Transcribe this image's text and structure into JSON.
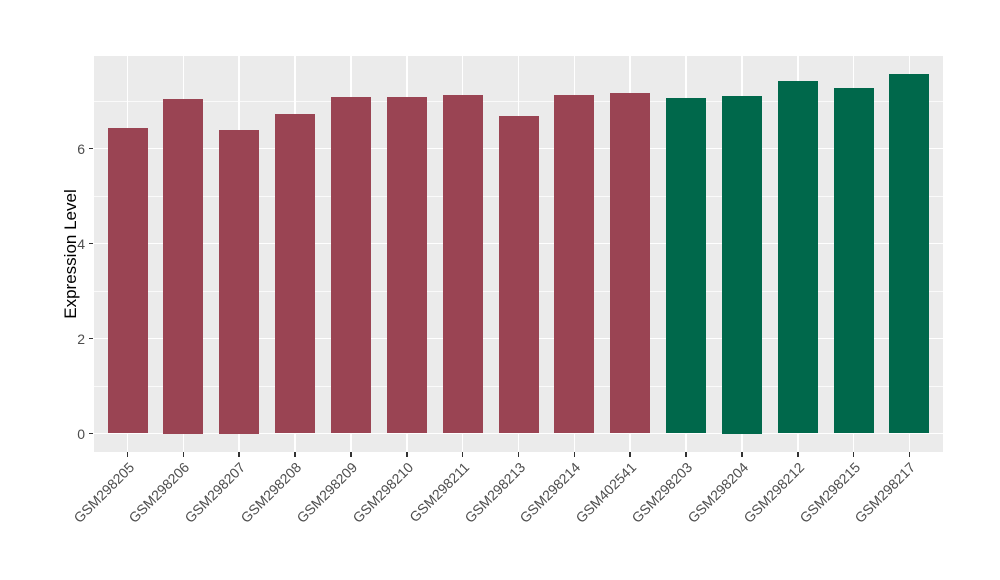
{
  "chart_data": {
    "type": "bar",
    "title": "",
    "xlabel": "",
    "ylabel": "Expression Level",
    "categories": [
      "GSM298205",
      "GSM298206",
      "GSM298207",
      "GSM298208",
      "GSM298209",
      "GSM298210",
      "GSM298211",
      "GSM298213",
      "GSM298214",
      "GSM402541",
      "GSM298203",
      "GSM298204",
      "GSM298212",
      "GSM298215",
      "GSM298217"
    ],
    "values": [
      6.44,
      7.05,
      6.4,
      6.73,
      7.08,
      7.08,
      7.12,
      6.68,
      7.13,
      7.17,
      7.07,
      7.1,
      7.43,
      7.27,
      7.56
    ],
    "bar_colors": [
      "#9A4453",
      "#9A4453",
      "#9A4453",
      "#9A4453",
      "#9A4453",
      "#9A4453",
      "#9A4453",
      "#9A4453",
      "#9A4453",
      "#9A4453",
      "#00684B",
      "#00684B",
      "#00684B",
      "#00684B",
      "#00684B"
    ],
    "y_axis": {
      "tick_labels": [
        "0",
        "2",
        "4",
        "6"
      ],
      "ticks": [
        0,
        2,
        4,
        6
      ],
      "minor_ticks": [
        1,
        3,
        5,
        7
      ],
      "range": [
        -0.39,
        7.95
      ]
    },
    "x_tick_rotation_deg": 45,
    "legend_position": "none",
    "grid": true,
    "style": {
      "panel_background": "#EBEBEB",
      "grid_color": "#FFFFFF",
      "axis_text_color": "#4D4D4D",
      "tick_mark_color": "#333333",
      "bar_color_left_group": "#9A4453",
      "bar_color_right_group": "#00684B"
    }
  }
}
